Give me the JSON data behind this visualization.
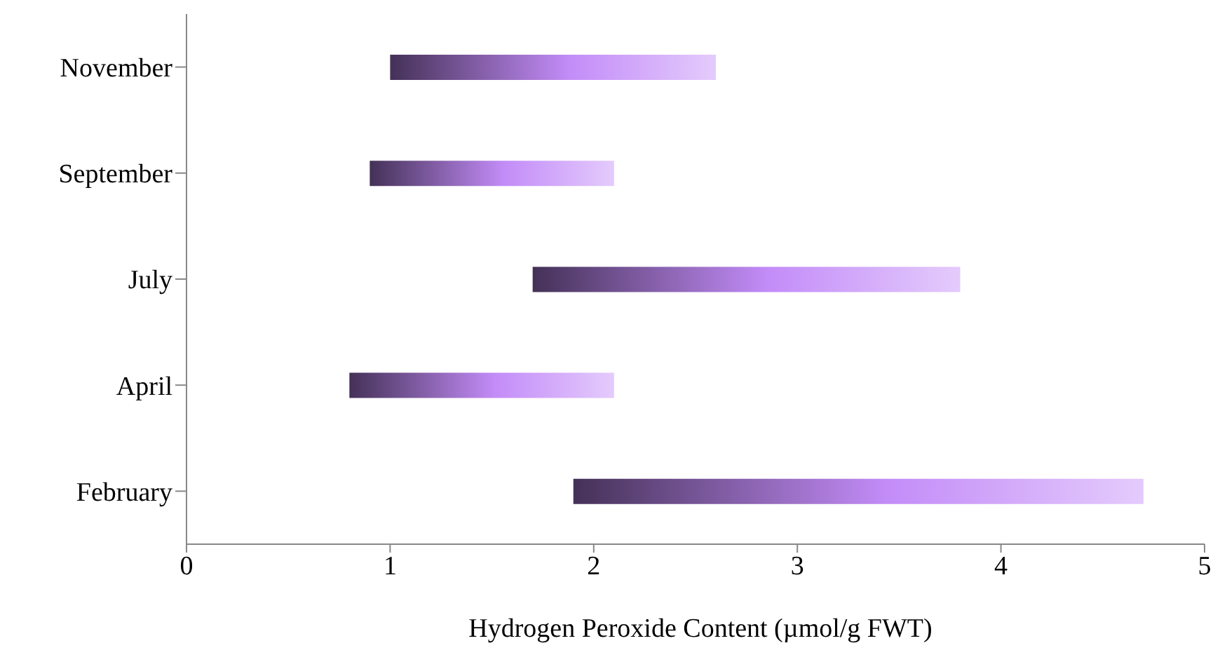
{
  "chart_data": {
    "type": "bar",
    "orientation": "horizontal",
    "xlabel": "Hydrogen Peroxide Content (µmol/g FWT)",
    "categories": [
      "November",
      "September",
      "July",
      "April",
      "February"
    ],
    "base": [
      1.0,
      0.9,
      1.7,
      0.8,
      1.9
    ],
    "values": [
      1.6,
      1.2,
      2.1,
      1.3,
      2.8
    ],
    "color": "#c38cf8",
    "xlim": [
      0,
      5
    ],
    "xticks": [
      0,
      1,
      2,
      3,
      4,
      5
    ],
    "grid": false,
    "legend": false
  }
}
